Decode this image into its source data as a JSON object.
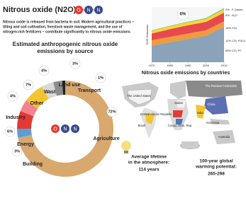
{
  "title": "Nitrous oxide (N2O)",
  "molecule": [
    "O",
    "N",
    "N"
  ],
  "intro": [
    "Nitrous oxide is released from bacteria in soil. Modern agricultural practices –",
    "tilling and soil cultivation, livestock waste management, and the use of",
    "nitrogen-rich fertilizers – contribute significantly to nitrous oxide emissions"
  ],
  "donut": {
    "title": [
      "Estimated anthropogenic nitrous oxide",
      "emissions by source"
    ],
    "segments": [
      {
        "label": "Agriculture",
        "value": 72,
        "value_label": "72%",
        "color": "#d8a86e"
      },
      {
        "label": "Building",
        "value": 3,
        "value_label": "3%",
        "color": "#5aa0d8"
      },
      {
        "label": "Energy",
        "value": 6,
        "value_label": "6%",
        "color": "#e53935"
      },
      {
        "label": "Industry",
        "value": 4,
        "value_label": "4%",
        "color": "#f2828f"
      },
      {
        "label": "Other",
        "value": 7,
        "value_label": "7%",
        "color": "#f4c430"
      },
      {
        "label": "Waste",
        "value": 4,
        "value_label": "4%",
        "color": "#d9d9d9"
      },
      {
        "label": "Land use",
        "value": 3,
        "value_label": "3%",
        "color": "#8d8d8d"
      },
      {
        "label": "Transport",
        "value": 1,
        "value_label": "1%",
        "color": "#222222"
      }
    ]
  },
  "ghg_chart": {
    "type": "area",
    "y_label": "GHG Emissions",
    "x": [
      1970,
      1980,
      1990,
      2000,
      2010
    ],
    "xlim": [
      1970,
      2010
    ],
    "xticks": [
      1970,
      1980,
      1990,
      2000,
      2010
    ],
    "ylim": [
      0,
      50
    ],
    "callout": "6%",
    "series": [
      {
        "name": "CO₂ FF",
        "share": "65%",
        "color": "#8aa3b8",
        "values": [
          15,
          18,
          21,
          24,
          32
        ]
      },
      {
        "name": "CO₂ FOLU",
        "share": "11%",
        "color": "#f19a3e",
        "values": [
          5,
          5,
          5,
          5,
          5
        ]
      },
      {
        "name": "CH₄",
        "share": "16%",
        "color": "#e8494d",
        "values": [
          6,
          7,
          7.5,
          7.5,
          8
        ]
      },
      {
        "name": "N₂O",
        "share": "6%",
        "color": "#f5d63d",
        "values": [
          2.5,
          2.5,
          2.7,
          2.8,
          3
        ]
      },
      {
        "name": "F-Gases",
        "share": "2%",
        "color": "#7cc15a",
        "values": [
          0.4,
          0.5,
          0.5,
          0.7,
          1
        ]
      }
    ]
  },
  "map": {
    "title": "Nitrous oxide emissions by countries",
    "countries": [
      "The Russian Federation",
      "The United States",
      "Sudan",
      "China",
      "Central African Republic",
      "India",
      "Brazil",
      "Congo, Dem. Rep.",
      "Indonesia",
      "Australia"
    ]
  },
  "facts": [
    {
      "label": [
        "Average lifetime",
        "in the atmosphere:"
      ],
      "value": "114 years"
    },
    {
      "label": [
        "100-year global",
        "warming potential:"
      ],
      "value": "265-298"
    }
  ]
}
